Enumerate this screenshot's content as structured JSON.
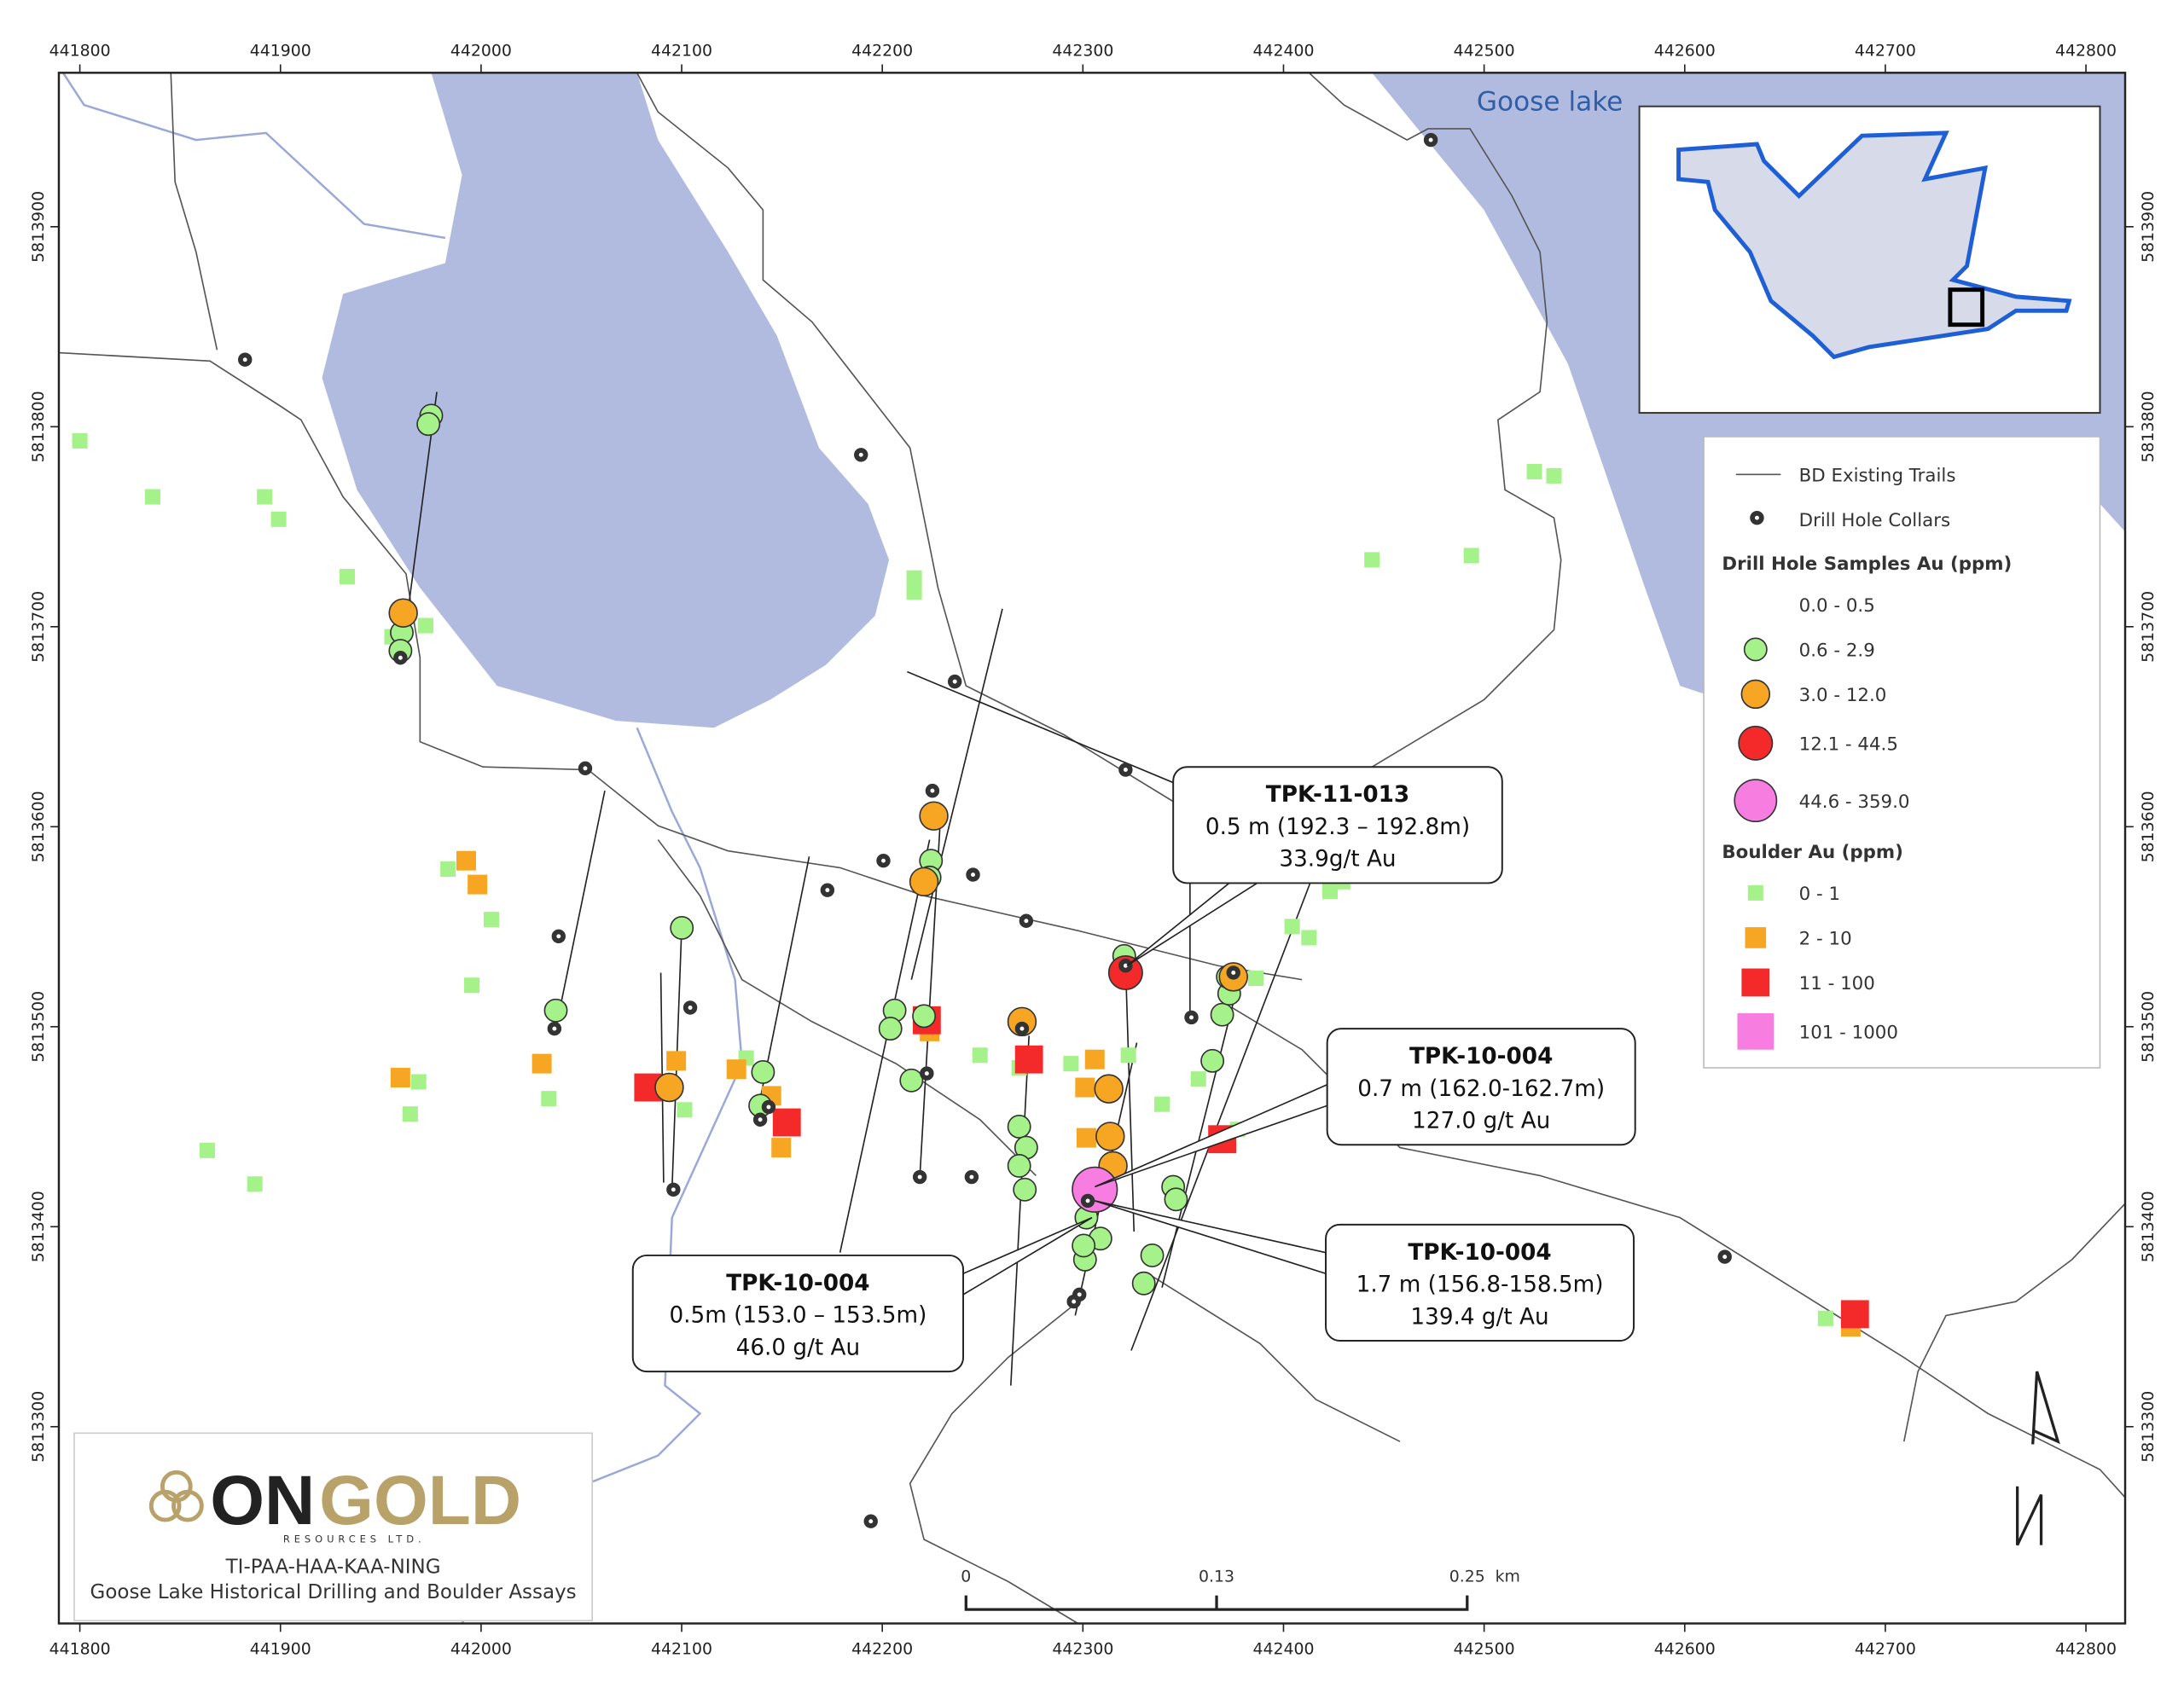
{
  "map": {
    "x_ticks": [
      441800,
      441900,
      442000,
      442100,
      442200,
      442300,
      442400,
      442500,
      442600,
      442700,
      442800
    ],
    "y_ticks": [
      5813900,
      5813800,
      5813700,
      5813600,
      5813500,
      5813400,
      5813300
    ],
    "lake_label": "Goose lake"
  },
  "legend": {
    "trails": "BD Existing Trails",
    "collars": "Drill Hole Collars",
    "samples_heading": "Drill Hole Samples Au (ppm)",
    "samples": [
      "0.0 - 0.5",
      "0.6 - 2.9",
      "3.0 - 12.0",
      "12.1 - 44.5",
      "44.6 - 359.0"
    ],
    "boulders_heading": "Boulder Au (ppm)",
    "boulders": [
      "0 - 1",
      "2 - 10",
      "11 - 100",
      "101 - 1000"
    ]
  },
  "callouts": [
    {
      "hole": "TPK-11-013",
      "interval": "0.5 m (192.3 – 192.8m)",
      "grade": "33.9g/t Au"
    },
    {
      "hole": "TPK-10-004",
      "interval": "0.7 m (162.0-162.7m)",
      "grade": "127.0 g/t Au"
    },
    {
      "hole": "TPK-10-004",
      "interval": "1.7 m (156.8-158.5m)",
      "grade": "139.4 g/t Au"
    },
    {
      "hole": "TPK-10-004",
      "interval": "0.5m (153.0 – 153.5m)",
      "grade": "46.0 g/t Au"
    }
  ],
  "logo": {
    "name_dark": "ON",
    "name_gold": "GOLD",
    "tagline": "RESOURCES LTD.",
    "project": "TI-PAA-HAA-KAA-NING",
    "title": "Goose Lake Historical Drilling and Boulder Assays"
  },
  "scale_bar": {
    "labels": [
      "0",
      "0.13",
      "0.25"
    ],
    "unit": "km"
  }
}
